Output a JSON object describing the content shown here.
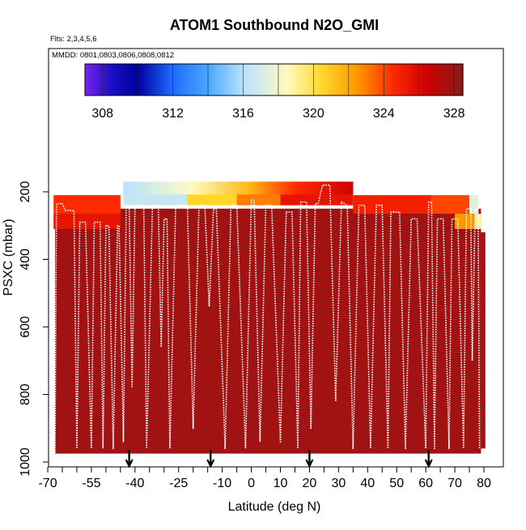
{
  "chart_data": {
    "type": "heatmap",
    "title": "ATOM1 Southbound N2O_GMI",
    "annotations": [
      "Flts: 2,3,4,5,6",
      "MMDD: 0801,0803,0806,0808,0812"
    ],
    "xlabel": "Latitude (deg N)",
    "ylabel": "PSXC (mbar)",
    "xlim": [
      -70,
      82
    ],
    "ylim": [
      1000,
      80
    ],
    "y_reversed": true,
    "x_ticks": [
      -70,
      -55,
      -40,
      -25,
      -10,
      0,
      10,
      20,
      30,
      40,
      50,
      60,
      70,
      80
    ],
    "x_minor_ticks": [
      -65,
      -60,
      -50,
      -45,
      -35,
      -30,
      -20,
      -15,
      -5,
      5,
      15,
      25,
      35,
      45,
      55,
      65,
      75
    ],
    "y_ticks": [
      200,
      400,
      600,
      800,
      1000
    ],
    "colorbar": {
      "ticks": [
        308,
        312,
        316,
        320,
        324,
        328
      ],
      "range": [
        307,
        328.5
      ],
      "stops": [
        {
          "value": 307.0,
          "color": "#7a22ee"
        },
        {
          "value": 308.5,
          "color": "#1a0fc4"
        },
        {
          "value": 310.0,
          "color": "#0000a0"
        },
        {
          "value": 312.0,
          "color": "#1e6bff"
        },
        {
          "value": 314.0,
          "color": "#4aa8ff"
        },
        {
          "value": 316.0,
          "color": "#b8e2ff"
        },
        {
          "value": 318.5,
          "color": "#fffac0"
        },
        {
          "value": 320.5,
          "color": "#ffd62a"
        },
        {
          "value": 322.5,
          "color": "#ff9800"
        },
        {
          "value": 324.5,
          "color": "#ff2a00"
        },
        {
          "value": 326.5,
          "color": "#cc0000"
        },
        {
          "value": 328.5,
          "color": "#8a1c1c"
        }
      ]
    },
    "fill_value": 327.8,
    "tropopause_cells": [
      {
        "lat": [
          -44,
          -22
        ],
        "p": [
          170,
          240
        ],
        "value": 316.5
      },
      {
        "lat": [
          -22,
          -5
        ],
        "p": [
          170,
          240
        ],
        "value": 320.5
      },
      {
        "lat": [
          -5,
          10
        ],
        "p": [
          170,
          240
        ],
        "value": 323.0
      },
      {
        "lat": [
          10,
          35
        ],
        "p": [
          170,
          240
        ],
        "value": 325.5
      },
      {
        "lat": [
          -68,
          -45
        ],
        "p": [
          210,
          265
        ],
        "value": 324.5
      },
      {
        "lat": [
          -68,
          -45
        ],
        "p": [
          265,
          310
        ],
        "value": 325.5
      },
      {
        "lat": [
          35,
          62
        ],
        "p": [
          210,
          265
        ],
        "value": 325.0
      },
      {
        "lat": [
          62,
          75
        ],
        "p": [
          210,
          265
        ],
        "value": 324.0
      },
      {
        "lat": [
          75,
          78
        ],
        "p": [
          210,
          265
        ],
        "value": 317.5
      },
      {
        "lat": [
          70,
          77
        ],
        "p": [
          265,
          310
        ],
        "value": 322.5
      },
      {
        "lat": [
          77,
          79
        ],
        "p": [
          265,
          310
        ],
        "value": 319.0
      }
    ],
    "profiles": [
      {
        "lat_range": [
          -68,
          79
        ],
        "pressure_range": [
          175,
          975
        ],
        "note": "vertical aircraft profiles drawn as white dotted sawtooth track"
      }
    ],
    "track": [
      [
        -67.5,
        980
      ],
      [
        -67,
        235
      ],
      [
        -65,
        235
      ],
      [
        -64,
        255
      ],
      [
        -61,
        255
      ],
      [
        -60,
        960
      ],
      [
        -59,
        290
      ],
      [
        -57,
        290
      ],
      [
        -55,
        960
      ],
      [
        -54,
        290
      ],
      [
        -52,
        290
      ],
      [
        -51,
        960
      ],
      [
        -50,
        300
      ],
      [
        -49,
        300
      ],
      [
        -47.5,
        960
      ],
      [
        -46,
        300
      ],
      [
        -45.5,
        300
      ],
      [
        -44,
        940
      ],
      [
        -43,
        240
      ],
      [
        -42,
        240
      ],
      [
        -41,
        780
      ],
      [
        -40,
        240
      ],
      [
        -37,
        240
      ],
      [
        -36,
        960
      ],
      [
        -34,
        240
      ],
      [
        -32,
        240
      ],
      [
        -31,
        660
      ],
      [
        -30,
        280
      ],
      [
        -29,
        280
      ],
      [
        -28,
        960
      ],
      [
        -26,
        240
      ],
      [
        -22,
        240
      ],
      [
        -20,
        900
      ],
      [
        -18,
        240
      ],
      [
        -16,
        240
      ],
      [
        -14.5,
        540
      ],
      [
        -13,
        250
      ],
      [
        -12,
        250
      ],
      [
        -9,
        960
      ],
      [
        -7,
        240
      ],
      [
        -5,
        240
      ],
      [
        -2,
        960
      ],
      [
        0,
        225
      ],
      [
        1,
        225
      ],
      [
        3,
        940
      ],
      [
        5,
        240
      ],
      [
        7,
        240
      ],
      [
        10,
        940
      ],
      [
        12,
        260
      ],
      [
        14,
        260
      ],
      [
        16,
        960
      ],
      [
        17,
        230
      ],
      [
        19,
        230
      ],
      [
        20.5,
        900
      ],
      [
        22,
        235
      ],
      [
        23,
        235
      ],
      [
        24.5,
        180
      ],
      [
        27,
        180
      ],
      [
        29,
        820
      ],
      [
        31,
        230
      ],
      [
        33,
        240
      ],
      [
        35,
        960
      ],
      [
        37,
        240
      ],
      [
        39,
        240
      ],
      [
        41,
        960
      ],
      [
        43,
        240
      ],
      [
        45,
        240
      ],
      [
        47,
        960
      ],
      [
        48,
        260
      ],
      [
        51,
        260
      ],
      [
        53,
        960
      ],
      [
        55,
        280
      ],
      [
        57,
        280
      ],
      [
        60,
        960
      ],
      [
        61,
        230
      ],
      [
        62,
        230
      ],
      [
        63,
        960
      ],
      [
        64,
        280
      ],
      [
        66,
        280
      ],
      [
        68,
        960
      ],
      [
        69,
        280
      ],
      [
        71,
        280
      ],
      [
        73,
        960
      ],
      [
        74,
        250
      ],
      [
        75.5,
        250
      ],
      [
        76,
        700
      ],
      [
        77,
        250
      ],
      [
        78,
        250
      ],
      [
        78.5,
        960
      ]
    ],
    "arrows_lat": [
      -42,
      -14,
      20,
      61
    ]
  }
}
